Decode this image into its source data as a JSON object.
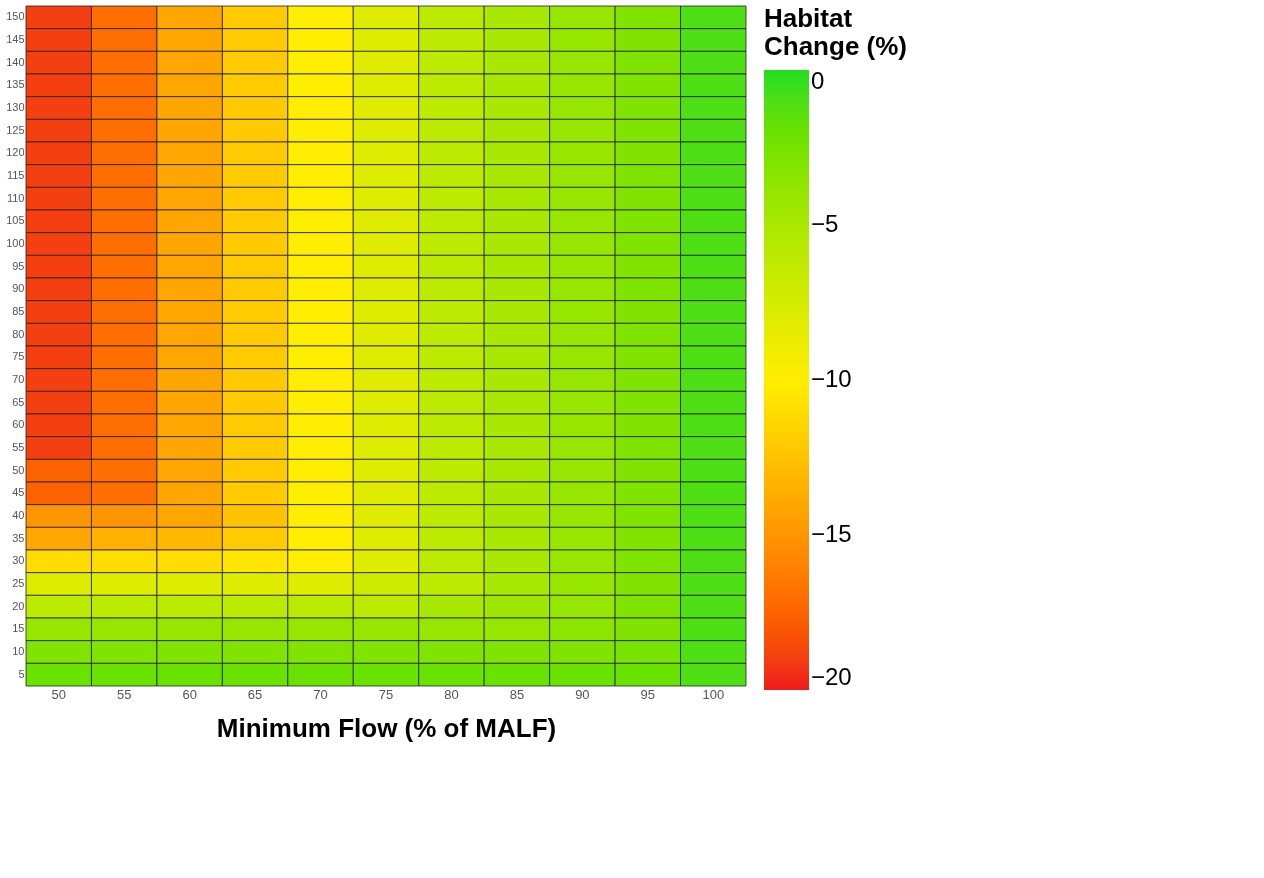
{
  "chart_data": {
    "type": "heatmap",
    "xlabel": "Minimum Flow (% of MALF)",
    "clabel": "Habitat Change (%)",
    "categories": [
      "50",
      "55",
      "60",
      "65",
      "70",
      "75",
      "80",
      "85",
      "90",
      "95",
      "100"
    ],
    "y_categories": [
      "150",
      "145",
      "140",
      "135",
      "130",
      "125",
      "120",
      "115",
      "110",
      "105",
      "100",
      "95",
      "90",
      "85",
      "80",
      "75",
      "70",
      "65",
      "60",
      "55",
      "50",
      "45",
      "40",
      "35",
      "30",
      "25",
      "20",
      "15",
      "10",
      "5"
    ],
    "cells": [
      [
        -19,
        -17,
        -14,
        -12,
        -10,
        -8,
        -6,
        -5,
        -4,
        -3,
        -1
      ],
      [
        -19,
        -17,
        -14,
        -12,
        -10,
        -8,
        -6,
        -5,
        -4,
        -3,
        -1
      ],
      [
        -19,
        -17,
        -14,
        -12,
        -10,
        -8,
        -6,
        -5,
        -4,
        -3,
        -1
      ],
      [
        -19,
        -17,
        -14,
        -12,
        -10,
        -8,
        -6,
        -5,
        -4,
        -3,
        -1
      ],
      [
        -19,
        -17,
        -14,
        -12,
        -10,
        -8,
        -6,
        -5,
        -4,
        -3,
        -1
      ],
      [
        -19,
        -17,
        -14,
        -12,
        -10,
        -8,
        -6,
        -5,
        -4,
        -3,
        -1
      ],
      [
        -19,
        -17,
        -14,
        -12,
        -10,
        -8,
        -6,
        -5,
        -4,
        -3,
        -1
      ],
      [
        -19,
        -17,
        -14,
        -12,
        -10,
        -8,
        -6,
        -5,
        -4,
        -3,
        -1
      ],
      [
        -19,
        -17,
        -14,
        -12,
        -10,
        -8,
        -6,
        -5,
        -4,
        -3,
        -1
      ],
      [
        -19,
        -17,
        -14,
        -12,
        -10,
        -8,
        -6,
        -5,
        -4,
        -3,
        -1
      ],
      [
        -19,
        -17,
        -14,
        -12,
        -10,
        -8,
        -6,
        -5,
        -4,
        -3,
        -1
      ],
      [
        -19,
        -17,
        -14,
        -12,
        -10,
        -8,
        -6,
        -5,
        -4,
        -3,
        -1
      ],
      [
        -19,
        -17,
        -14,
        -12,
        -10,
        -8,
        -6,
        -5,
        -4,
        -3,
        -1
      ],
      [
        -19,
        -17,
        -14,
        -12,
        -10,
        -8,
        -6,
        -5,
        -4,
        -3,
        -1
      ],
      [
        -19,
        -17,
        -14,
        -12,
        -10,
        -8,
        -6,
        -5,
        -4,
        -3,
        -1
      ],
      [
        -19,
        -17,
        -14,
        -12,
        -10,
        -8,
        -6,
        -5,
        -4,
        -3,
        -1
      ],
      [
        -19,
        -17,
        -14,
        -12,
        -10,
        -8,
        -6,
        -5,
        -4,
        -3,
        -1
      ],
      [
        -19,
        -17,
        -14,
        -12,
        -10,
        -8,
        -6,
        -5,
        -4,
        -3,
        -1
      ],
      [
        -19,
        -17,
        -14,
        -12,
        -10,
        -8,
        -6,
        -5,
        -4,
        -3,
        -1
      ],
      [
        -19,
        -17,
        -14,
        -12,
        -10,
        -8,
        -6,
        -5,
        -4,
        -3,
        -1
      ],
      [
        -17.5,
        -17,
        -14,
        -12,
        -10,
        -8,
        -6,
        -5,
        -4,
        -3,
        -1
      ],
      [
        -17.5,
        -17,
        -14,
        -12,
        -10,
        -8,
        -6,
        -5,
        -4,
        -3,
        -1
      ],
      [
        -15,
        -15,
        -14,
        -12.5,
        -10,
        -8,
        -6,
        -5,
        -4,
        -3,
        -1
      ],
      [
        -14,
        -13.5,
        -13,
        -12,
        -10,
        -8,
        -6,
        -5,
        -4,
        -3,
        -1
      ],
      [
        -11,
        -11,
        -11,
        -10.5,
        -10,
        -8,
        -6,
        -5,
        -4,
        -3,
        -1
      ],
      [
        -8,
        -8,
        -8,
        -8,
        -8,
        -7,
        -6,
        -5,
        -4,
        -3,
        -1
      ],
      [
        -6,
        -6,
        -6,
        -6,
        -6,
        -6,
        -5,
        -4.5,
        -4,
        -3,
        -1
      ],
      [
        -4,
        -4,
        -4,
        -4,
        -4,
        -4,
        -4,
        -4,
        -3.5,
        -3,
        -1
      ],
      [
        -3,
        -3,
        -3,
        -3,
        -3,
        -3,
        -3,
        -3,
        -3,
        -2.5,
        -1
      ],
      [
        -2,
        -2,
        -2,
        -2,
        -2,
        -2,
        -2,
        -2,
        -2,
        -2,
        -1
      ]
    ],
    "clim": [
      -20,
      0
    ],
    "cticks": [
      0,
      -5,
      -10,
      -15,
      -20
    ]
  }
}
